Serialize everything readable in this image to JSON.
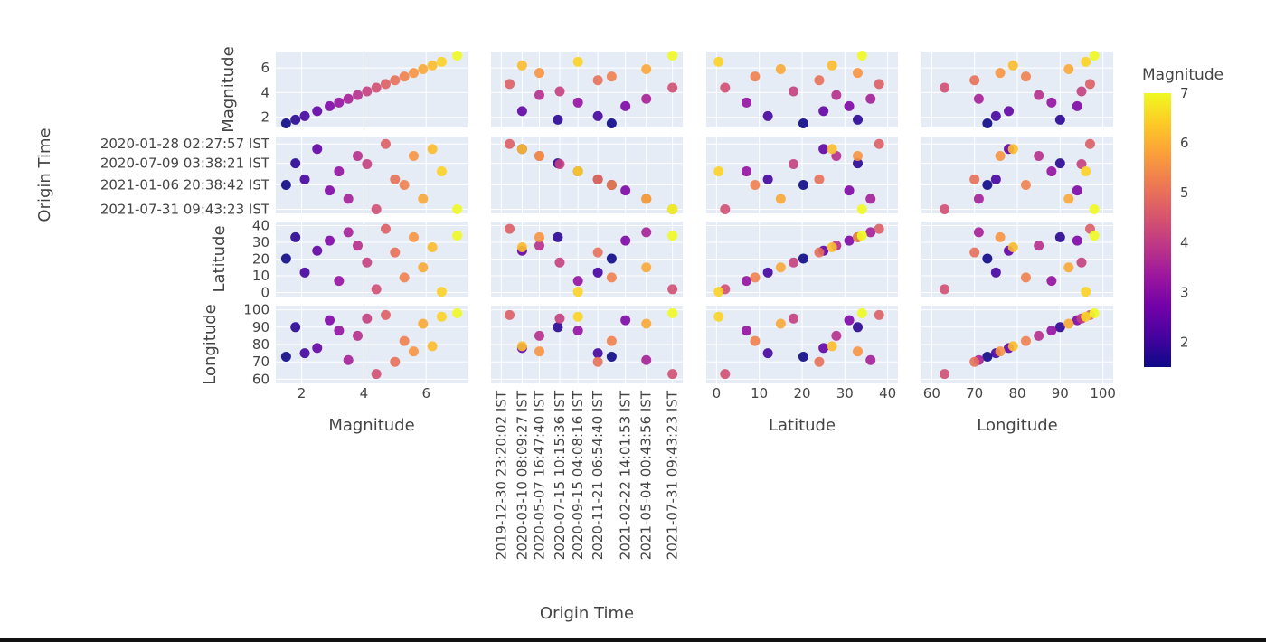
{
  "chart_data": {
    "type": "scatter",
    "subtype": "scatter-matrix",
    "dimensions": [
      "Magnitude",
      "Origin Time",
      "Latitude",
      "Longitude"
    ],
    "color_by": "Magnitude",
    "colorscale": [
      "#0d0887",
      "#46039f",
      "#7201a8",
      "#9c179e",
      "#bd3786",
      "#d8576b",
      "#ed7953",
      "#fb9f3a",
      "#fdca26",
      "#f0f921"
    ],
    "background_color": "#e5ecf6",
    "grid": true,
    "ranges": {
      "Magnitude": [
        1.5,
        7.0
      ],
      "Origin Time": [
        "2019-12-30 23:20:02 IST",
        "2021-07-31 09:43:23 IST"
      ],
      "Latitude": [
        0,
        40
      ],
      "Longitude": [
        60,
        100
      ]
    },
    "ticks": {
      "Magnitude": {
        "values": [
          2,
          4,
          6
        ],
        "labels": [
          "2",
          "4",
          "6"
        ]
      },
      "Latitude": {
        "values": [
          0,
          10,
          20,
          30,
          40
        ],
        "labels": [
          "0",
          "10",
          "20",
          "30",
          "40"
        ]
      },
      "Longitude": {
        "values": [
          60,
          70,
          80,
          90,
          100
        ],
        "labels": [
          "60",
          "70",
          "80",
          "90",
          "100"
        ]
      },
      "Origin Time x": {
        "values": [
          "2019-12-30 23:20:02 IST",
          "2020-03-10 08:09:27 IST",
          "2020-05-07 16:47:40 IST",
          "2020-07-15 10:15:36 IST",
          "2020-09-15 04:08:16 IST",
          "2020-11-21 06:54:40 IST",
          "2021-02-22 14:01:53 IST",
          "2021-05-04 00:43:56 IST",
          "2021-07-31 09:43:23 IST"
        ],
        "labels": [
          "2019-12-30 23:20:02 IST",
          "2020-03-10 08:09:27 IST",
          "2020-05-07 16:47:40 IST",
          "2020-07-15 10:15:36 IST",
          "2020-09-15 04:08:16 IST",
          "2020-11-21 06:54:40 IST",
          "2021-02-22 14:01:53 IST",
          "2021-05-04 00:43:56 IST",
          "2021-07-31 09:43:23 IST"
        ]
      },
      "Origin Time y": {
        "values": [
          "2020-01-28 02:27:57 IST",
          "2020-07-09 03:38:21 IST",
          "2021-01-06 20:38:42 IST",
          "2021-07-31 09:43:23 IST"
        ],
        "labels": [
          "2020-01-28 02:27:57 IST",
          "2020-07-09 03:38:21 IST",
          "2021-01-06 20:38:42 IST",
          "2021-07-31 09:43:23 IST"
        ]
      }
    },
    "colorbar": {
      "title": "Magnitude",
      "range": [
        1.5,
        7
      ],
      "tick_values": [
        2,
        3,
        4,
        5,
        6,
        7
      ],
      "tick_labels": [
        "2",
        "3",
        "4",
        "5",
        "6",
        "7"
      ]
    },
    "xlabels": [
      "Magnitude",
      "Origin Time",
      "Latitude",
      "Longitude"
    ],
    "ylabels": [
      "Magnitude",
      "Origin Time",
      "Latitude",
      "Longitude"
    ],
    "sample_points": [
      {
        "Magnitude": 1.5,
        "Latitude": 20.3,
        "Longitude": 73.0,
        "Origin Time": "2021-01-06 20:38:42 IST"
      },
      {
        "Magnitude": 1.8,
        "Latitude": 33.0,
        "Longitude": 90.0,
        "Origin Time": "2020-07-09 03:38:21 IST"
      },
      {
        "Magnitude": 2.1,
        "Latitude": 12.0,
        "Longitude": 75.0,
        "Origin Time": "2020-11-21 06:54:40 IST"
      },
      {
        "Magnitude": 2.5,
        "Latitude": 25.0,
        "Longitude": 78.0,
        "Origin Time": "2020-03-10 08:09:27 IST"
      },
      {
        "Magnitude": 2.9,
        "Latitude": 31.0,
        "Longitude": 94.0,
        "Origin Time": "2021-02-22 14:01:53 IST"
      },
      {
        "Magnitude": 3.2,
        "Latitude": 7.0,
        "Longitude": 88.0,
        "Origin Time": "2020-09-15 04:08:16 IST"
      },
      {
        "Magnitude": 3.5,
        "Latitude": 36.0,
        "Longitude": 71.0,
        "Origin Time": "2021-05-04 00:43:56 IST"
      },
      {
        "Magnitude": 3.8,
        "Latitude": 28.0,
        "Longitude": 85.0,
        "Origin Time": "2020-05-07 16:47:40 IST"
      },
      {
        "Magnitude": 4.1,
        "Latitude": 18.0,
        "Longitude": 95.0,
        "Origin Time": "2020-07-15 10:15:36 IST"
      },
      {
        "Magnitude": 4.4,
        "Latitude": 2.0,
        "Longitude": 63.0,
        "Origin Time": "2021-07-31 09:43:23 IST"
      },
      {
        "Magnitude": 4.7,
        "Latitude": 38.0,
        "Longitude": 97.0,
        "Origin Time": "2020-01-28 02:27:57 IST"
      },
      {
        "Magnitude": 5.0,
        "Latitude": 24.0,
        "Longitude": 70.0,
        "Origin Time": "2020-11-21 06:54:40 IST"
      },
      {
        "Magnitude": 5.3,
        "Latitude": 9.0,
        "Longitude": 82.0,
        "Origin Time": "2021-01-06 20:38:42 IST"
      },
      {
        "Magnitude": 5.6,
        "Latitude": 33.0,
        "Longitude": 76.0,
        "Origin Time": "2020-05-07 16:47:40 IST"
      },
      {
        "Magnitude": 5.9,
        "Latitude": 15.0,
        "Longitude": 92.0,
        "Origin Time": "2021-05-04 00:43:56 IST"
      },
      {
        "Magnitude": 6.2,
        "Latitude": 27.0,
        "Longitude": 79.0,
        "Origin Time": "2020-03-10 08:09:27 IST"
      },
      {
        "Magnitude": 6.5,
        "Latitude": 0.5,
        "Longitude": 96.0,
        "Origin Time": "2020-09-15 04:08:16 IST"
      },
      {
        "Magnitude": 7.0,
        "Latitude": 34.0,
        "Longitude": 98.0,
        "Origin Time": "2021-07-31 09:43:23 IST"
      }
    ]
  }
}
